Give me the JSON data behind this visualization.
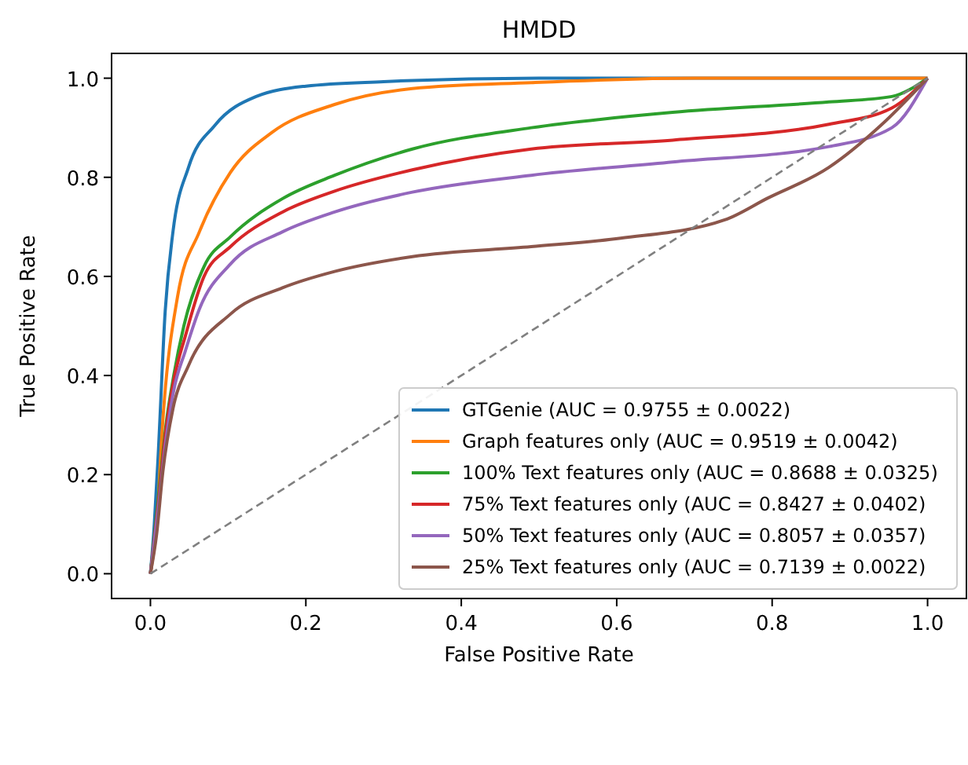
{
  "chart_data": {
    "type": "line",
    "title": "HMDD",
    "xlabel": "False Positive Rate",
    "ylabel": "True Positive Rate",
    "xlim": [
      -0.05,
      1.05
    ],
    "ylim": [
      -0.05,
      1.05
    ],
    "xticks": [
      {
        "value": 0,
        "label": "0.0"
      },
      {
        "value": 0.2,
        "label": "0.2"
      },
      {
        "value": 0.4,
        "label": "0.4"
      },
      {
        "value": 0.6,
        "label": "0.6"
      },
      {
        "value": 0.8,
        "label": "0.8"
      },
      {
        "value": 1,
        "label": "1.0"
      }
    ],
    "yticks": [
      {
        "value": 0,
        "label": "0.0"
      },
      {
        "value": 0.2,
        "label": "0.2"
      },
      {
        "value": 0.4,
        "label": "0.4"
      },
      {
        "value": 0.6,
        "label": "0.6"
      },
      {
        "value": 0.8,
        "label": "0.8"
      },
      {
        "value": 1,
        "label": "1.0"
      }
    ],
    "grid": false,
    "legend": "bottom right",
    "marker": "none",
    "line_style": "solid",
    "series": [
      {
        "name": "GTGenie (AUC = 0.9755 ± 0.0022)",
        "color": "#1f77b4",
        "x": [
          0,
          0.005,
          0.01,
          0.019,
          0.029,
          0.049,
          0.083,
          0.136,
          0.2,
          0.3,
          0.5,
          1
        ],
        "values": [
          0,
          0.1,
          0.24,
          0.53,
          0.69,
          0.82,
          0.905,
          0.963,
          0.984,
          0.993,
          1,
          1
        ]
      },
      {
        "name": "Graph features only (AUC = 0.9519 ± 0.0042)",
        "color": "#ff7f0e",
        "x": [
          0,
          0.008,
          0.016,
          0.035,
          0.063,
          0.103,
          0.156,
          0.237,
          0.337,
          0.49,
          0.7,
          1
        ],
        "values": [
          0,
          0.1,
          0.31,
          0.56,
          0.69,
          0.81,
          0.89,
          0.947,
          0.979,
          0.991,
          1,
          1
        ]
      },
      {
        "name": "100% Text features only (AUC = 0.8688 ± 0.0325)",
        "color": "#2ca02c",
        "x": [
          0,
          0.01,
          0.02,
          0.03,
          0.043,
          0.069,
          0.103,
          0.17,
          0.237,
          0.337,
          0.49,
          0.672,
          0.873,
          0.954,
          1
        ],
        "values": [
          0,
          0.15,
          0.3,
          0.4,
          0.5,
          0.62,
          0.68,
          0.757,
          0.804,
          0.857,
          0.9,
          0.931,
          0.952,
          0.963,
          1
        ]
      },
      {
        "name": "75% Text features only (AUC = 0.8427 ± 0.0402)",
        "color": "#d62728",
        "x": [
          0,
          0.01,
          0.02,
          0.03,
          0.045,
          0.069,
          0.103,
          0.17,
          0.237,
          0.337,
          0.49,
          0.672,
          0.873,
          0.954,
          1
        ],
        "values": [
          0,
          0.14,
          0.29,
          0.39,
          0.48,
          0.6,
          0.66,
          0.73,
          0.772,
          0.815,
          0.857,
          0.875,
          0.907,
          0.94,
          1
        ]
      },
      {
        "name": "50% Text features only (AUC = 0.8057 ± 0.0357)",
        "color": "#9467bd",
        "x": [
          0,
          0.01,
          0.02,
          0.03,
          0.045,
          0.063,
          0.103,
          0.17,
          0.237,
          0.337,
          0.49,
          0.672,
          0.873,
          0.954,
          1
        ],
        "values": [
          0,
          0.13,
          0.27,
          0.37,
          0.45,
          0.534,
          0.625,
          0.69,
          0.73,
          0.77,
          0.804,
          0.831,
          0.862,
          0.9,
          1
        ]
      },
      {
        "name": "25% Text features only (AUC = 0.7139 ± 0.0022)",
        "color": "#8c564b",
        "x": [
          0,
          0.008,
          0.016,
          0.029,
          0.049,
          0.103,
          0.17,
          0.237,
          0.337,
          0.49,
          0.605,
          0.739,
          0.793,
          0.873,
          0.94,
          1
        ],
        "values": [
          0,
          0.08,
          0.206,
          0.333,
          0.42,
          0.524,
          0.577,
          0.61,
          0.64,
          0.66,
          0.677,
          0.714,
          0.757,
          0.82,
          0.905,
          1
        ]
      },
      {
        "color": "#808080",
        "line_style": "dashed",
        "x": [
          0,
          1
        ],
        "values": [
          0,
          1
        ]
      }
    ]
  }
}
